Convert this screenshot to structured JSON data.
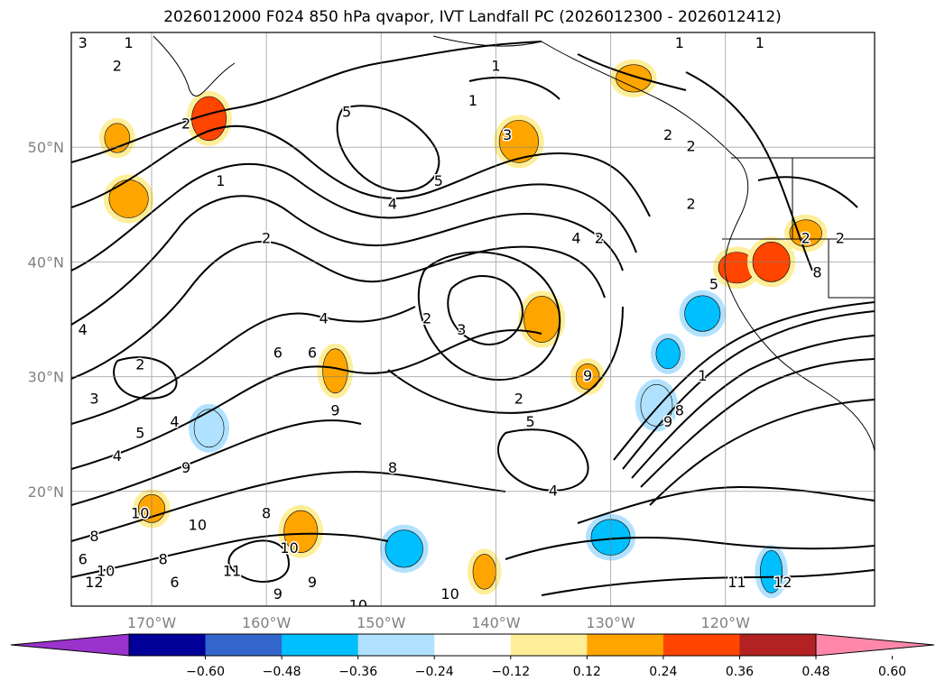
{
  "chart_data": {
    "type": "contour",
    "title": "2026012000 F024 850 hPa qvapor, IVT Landfall PC (2026012300 - 2026012412)",
    "xlabel": "",
    "ylabel": "",
    "x_range_deg": [
      -177,
      -107
    ],
    "y_range_deg": [
      10,
      60
    ],
    "x_ticks": [
      {
        "value": -170,
        "label": "170°W"
      },
      {
        "value": -160,
        "label": "160°W"
      },
      {
        "value": -150,
        "label": "150°W"
      },
      {
        "value": -140,
        "label": "140°W"
      },
      {
        "value": -130,
        "label": "130°W"
      },
      {
        "value": -120,
        "label": "120°W"
      }
    ],
    "y_ticks": [
      {
        "value": 20,
        "label": "20°N"
      },
      {
        "value": 30,
        "label": "30°N"
      },
      {
        "value": 40,
        "label": "40°N"
      },
      {
        "value": 50,
        "label": "50°N"
      }
    ],
    "grid": true,
    "colorbar": {
      "orientation": "horizontal",
      "extend": "both",
      "colors": [
        "#9933cc",
        "#000099",
        "#3366cc",
        "#00bfff",
        "#b0e2ff",
        "#ffffff",
        "#ffee99",
        "#ffa500",
        "#ff4500",
        "#b22222",
        "#ff88aa"
      ],
      "tick_labels": [
        "−0.60",
        "−0.48",
        "−0.36",
        "−0.24",
        "−0.12",
        "0.12",
        "0.24",
        "0.36",
        "0.48",
        "0.60"
      ]
    },
    "contour_labels": [
      {
        "lon": -176,
        "lat": 59,
        "text": "3"
      },
      {
        "lon": -173,
        "lat": 57,
        "text": "2"
      },
      {
        "lon": -172,
        "lat": 59,
        "text": "1"
      },
      {
        "lon": -167,
        "lat": 52,
        "text": "2"
      },
      {
        "lon": -164,
        "lat": 47,
        "text": "1"
      },
      {
        "lon": -160,
        "lat": 42,
        "text": "2"
      },
      {
        "lon": -153,
        "lat": 53,
        "text": "5"
      },
      {
        "lon": -145,
        "lat": 47,
        "text": "5"
      },
      {
        "lon": -149,
        "lat": 45,
        "text": "4"
      },
      {
        "lon": -142,
        "lat": 54,
        "text": "1"
      },
      {
        "lon": -139,
        "lat": 51,
        "text": "3"
      },
      {
        "lon": -140,
        "lat": 57,
        "text": "1"
      },
      {
        "lon": -124,
        "lat": 59,
        "text": "1"
      },
      {
        "lon": -117,
        "lat": 59,
        "text": "1"
      },
      {
        "lon": -125,
        "lat": 51,
        "text": "2"
      },
      {
        "lon": -123,
        "lat": 50,
        "text": "2"
      },
      {
        "lon": -123,
        "lat": 45,
        "text": "2"
      },
      {
        "lon": -176,
        "lat": 34,
        "text": "4"
      },
      {
        "lon": -171,
        "lat": 31,
        "text": "2"
      },
      {
        "lon": -175,
        "lat": 28,
        "text": "3"
      },
      {
        "lon": -155,
        "lat": 35,
        "text": "4"
      },
      {
        "lon": -159,
        "lat": 32,
        "text": "6"
      },
      {
        "lon": -156,
        "lat": 32,
        "text": "6"
      },
      {
        "lon": -146,
        "lat": 35,
        "text": "2"
      },
      {
        "lon": -143,
        "lat": 34,
        "text": "3"
      },
      {
        "lon": -138,
        "lat": 28,
        "text": "2"
      },
      {
        "lon": -137,
        "lat": 26,
        "text": "5"
      },
      {
        "lon": -132,
        "lat": 30,
        "text": "9"
      },
      {
        "lon": -133,
        "lat": 42,
        "text": "4"
      },
      {
        "lon": -131,
        "lat": 42,
        "text": "2"
      },
      {
        "lon": -168,
        "lat": 26,
        "text": "4"
      },
      {
        "lon": -171,
        "lat": 25,
        "text": "5"
      },
      {
        "lon": -173,
        "lat": 23,
        "text": "4"
      },
      {
        "lon": -167,
        "lat": 22,
        "text": "9"
      },
      {
        "lon": -154,
        "lat": 27,
        "text": "9"
      },
      {
        "lon": -149,
        "lat": 22,
        "text": "8"
      },
      {
        "lon": -160,
        "lat": 18,
        "text": "8"
      },
      {
        "lon": -171,
        "lat": 18,
        "text": "10"
      },
      {
        "lon": -166,
        "lat": 17,
        "text": "10"
      },
      {
        "lon": -158,
        "lat": 15,
        "text": "10"
      },
      {
        "lon": -175,
        "lat": 16,
        "text": "8"
      },
      {
        "lon": -176,
        "lat": 14,
        "text": "6"
      },
      {
        "lon": -174,
        "lat": 13,
        "text": "10"
      },
      {
        "lon": -175,
        "lat": 12,
        "text": "12"
      },
      {
        "lon": -169,
        "lat": 14,
        "text": "8"
      },
      {
        "lon": -168,
        "lat": 12,
        "text": "6"
      },
      {
        "lon": -163,
        "lat": 13,
        "text": "11"
      },
      {
        "lon": -159,
        "lat": 11,
        "text": "9"
      },
      {
        "lon": -156,
        "lat": 12,
        "text": "9"
      },
      {
        "lon": -152,
        "lat": 10,
        "text": "10"
      },
      {
        "lon": -144,
        "lat": 11,
        "text": "10"
      },
      {
        "lon": -125,
        "lat": 26,
        "text": "9"
      },
      {
        "lon": -124,
        "lat": 27,
        "text": "8"
      },
      {
        "lon": -122,
        "lat": 30,
        "text": "1"
      },
      {
        "lon": -115,
        "lat": 12,
        "text": "12"
      },
      {
        "lon": -119,
        "lat": 12,
        "text": "11"
      },
      {
        "lon": -121,
        "lat": 38,
        "text": "5"
      },
      {
        "lon": -113,
        "lat": 42,
        "text": "2"
      },
      {
        "lon": -112,
        "lat": 39,
        "text": "8"
      },
      {
        "lon": -110,
        "lat": 42,
        "text": "2"
      },
      {
        "lon": -135,
        "lat": 20,
        "text": "4"
      }
    ],
    "positive_patches": [
      {
        "lon": -165,
        "lat": 52.5,
        "level": 0.36
      },
      {
        "lon": -172,
        "lat": 45.5,
        "level": 0.24
      },
      {
        "lon": -173,
        "lat": 50.8,
        "level": 0.24
      },
      {
        "lon": -138,
        "lat": 50.5,
        "level": 0.24
      },
      {
        "lon": -128,
        "lat": 56,
        "level": 0.24
      },
      {
        "lon": -119,
        "lat": 39.5,
        "level": 0.36
      },
      {
        "lon": -116,
        "lat": 40,
        "level": 0.36
      },
      {
        "lon": -113,
        "lat": 42.5,
        "level": 0.24
      },
      {
        "lon": -154,
        "lat": 30.5,
        "level": 0.24
      },
      {
        "lon": -136,
        "lat": 35,
        "level": 0.24
      },
      {
        "lon": -132,
        "lat": 30,
        "level": 0.24
      },
      {
        "lon": -170,
        "lat": 18.5,
        "level": 0.24
      },
      {
        "lon": -157,
        "lat": 16.5,
        "level": 0.24
      },
      {
        "lon": -141,
        "lat": 13,
        "level": 0.24
      }
    ],
    "negative_patches": [
      {
        "lon": -148,
        "lat": 15,
        "level": -0.24
      },
      {
        "lon": -130,
        "lat": 16,
        "level": -0.24
      },
      {
        "lon": -116,
        "lat": 13,
        "level": -0.24
      },
      {
        "lon": -125,
        "lat": 32,
        "level": -0.24
      },
      {
        "lon": -122,
        "lat": 35.5,
        "level": -0.24
      },
      {
        "lon": -165,
        "lat": 25.5,
        "level": -0.12
      },
      {
        "lon": -126,
        "lat": 27.5,
        "level": -0.12
      }
    ]
  }
}
